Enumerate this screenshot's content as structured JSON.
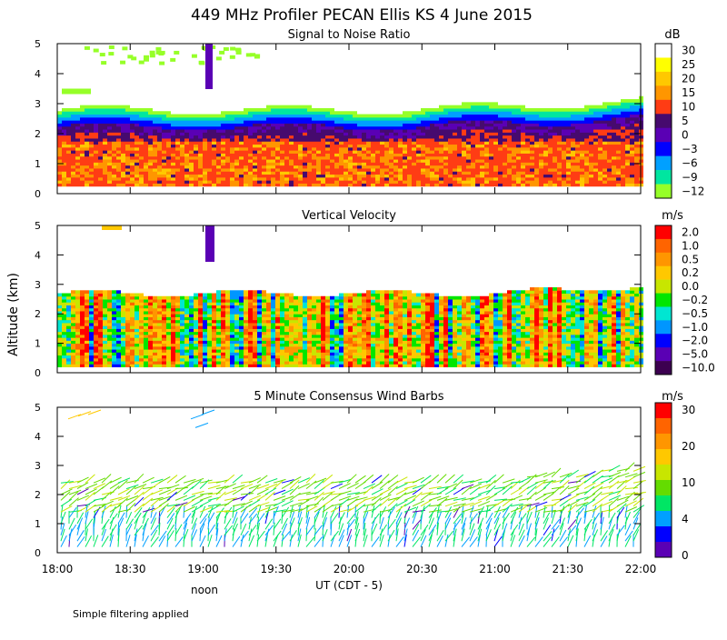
{
  "title": "449 MHz Profiler PECAN Ellis KS   4 June 2015",
  "footnote": "Simple filtering applied",
  "ylabel": "Altitude (km)",
  "xlabel": "UT  (CDT - 5)",
  "x_note": "noon",
  "x_ticks": [
    "18:00",
    "18:30",
    "19:00",
    "19:30",
    "20:00",
    "20:30",
    "21:00",
    "21:30",
    "22:00"
  ],
  "y_ticks": [
    "0",
    "1",
    "2",
    "3",
    "4",
    "5"
  ],
  "chart_data": [
    {
      "type": "heatmap",
      "title": "Signal to Noise Ratio",
      "colorbar_unit": "dB",
      "colorbar_labels": [
        "30",
        "25",
        "20",
        "15",
        "10",
        "5",
        "0",
        "−3",
        "−6",
        "−9",
        "−12"
      ],
      "colorbar_colors": [
        "#ffffff",
        "#ffff00",
        "#ffc800",
        "#ff9600",
        "#ff3c14",
        "#460a6e",
        "#5a00b4",
        "#0000ff",
        "#00a0ff",
        "#00e6a0",
        "#96ff28"
      ],
      "xlim": [
        "18:00",
        "22:00"
      ],
      "ylim": [
        0,
        5
      ]
    },
    {
      "type": "heatmap",
      "title": "Vertical Velocity",
      "colorbar_unit": "m/s",
      "colorbar_labels": [
        "2.0",
        "1.0",
        "0.5",
        "0.2",
        "0.0",
        "−0.2",
        "−0.5",
        "−1.0",
        "−2.0",
        "−5.0",
        "−10.0"
      ],
      "colorbar_colors": [
        "#ff0000",
        "#ff6400",
        "#ff9600",
        "#ffc800",
        "#c8e600",
        "#00e600",
        "#00e6d2",
        "#0096ff",
        "#0000ff",
        "#5a00b4",
        "#3c0050"
      ],
      "xlim": [
        "18:00",
        "22:00"
      ],
      "ylim": [
        0,
        5
      ]
    },
    {
      "type": "scatter",
      "title": "5 Minute Consensus Wind Barbs",
      "colorbar_unit": "m/s",
      "colorbar_labels": [
        "30",
        "20",
        "10",
        "4",
        "0"
      ],
      "colorbar_colors": [
        "#ff0000",
        "#ff6400",
        "#ff9600",
        "#ffc800",
        "#c8e600",
        "#64dc00",
        "#00e664",
        "#00a0ff",
        "#0000ff",
        "#5a00b4"
      ],
      "xlim": [
        "18:00",
        "22:00"
      ],
      "ylim": [
        0,
        5
      ]
    }
  ]
}
